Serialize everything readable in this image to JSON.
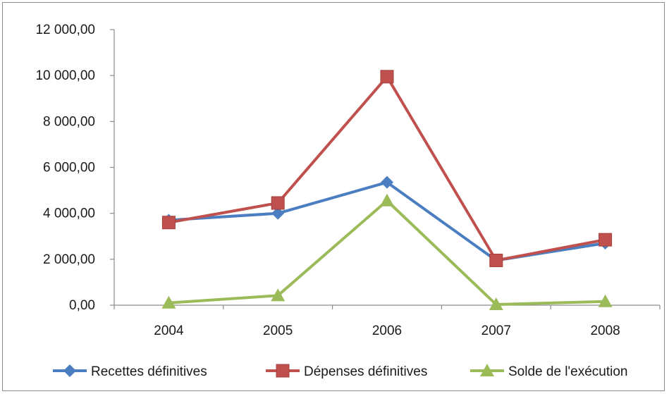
{
  "chart_data": {
    "type": "line",
    "title": "",
    "xlabel": "",
    "ylabel": "",
    "categories": [
      "2004",
      "2005",
      "2006",
      "2007",
      "2008"
    ],
    "ylim": [
      0,
      12000
    ],
    "y_ticks": [
      "0,00",
      "2 000,00",
      "4 000,00",
      "6 000,00",
      "8 000,00",
      "10 000,00",
      "12 000,00"
    ],
    "grid": false,
    "legend_position": "bottom",
    "series": [
      {
        "name": "Recettes définitives",
        "values": [
          3700,
          4000,
          5350,
          1950,
          2700
        ],
        "color": "#4a7ec1",
        "marker": "diamond"
      },
      {
        "name": "Dépenses définitives",
        "values": [
          3600,
          4450,
          9950,
          1950,
          2850
        ],
        "color": "#c0504d",
        "marker": "square"
      },
      {
        "name": "Solde de l'exécution",
        "values": [
          100,
          420,
          4550,
          30,
          160
        ],
        "color": "#9bbb59",
        "marker": "triangle"
      }
    ]
  }
}
